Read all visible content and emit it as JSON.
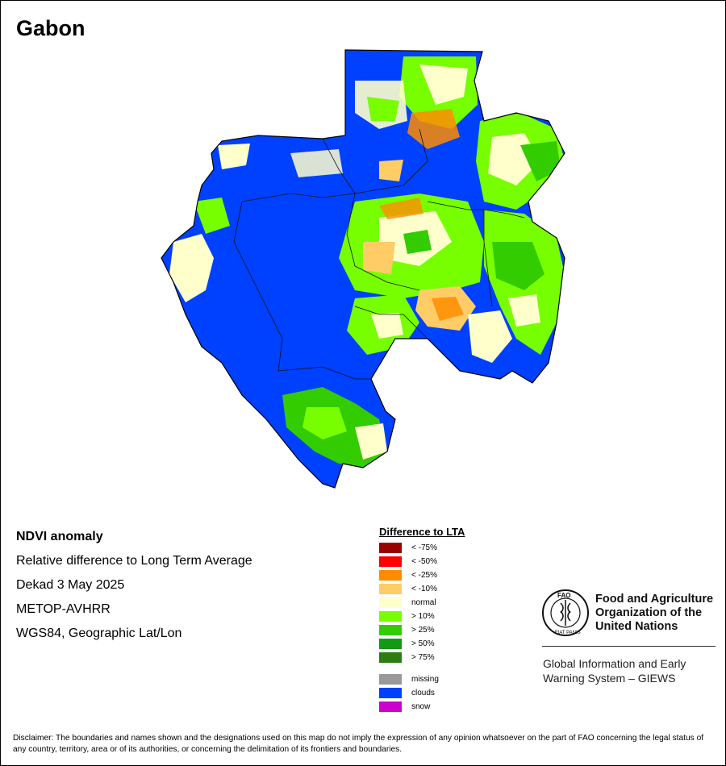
{
  "map": {
    "title": "Gabon"
  },
  "info": {
    "heading": "NDVI anomaly",
    "subtitle": "Relative difference to Long Term Average",
    "period": "Dekad 3 May 2025",
    "sensor": "METOP-AVHRR",
    "projection": "WGS84, Geographic Lat/Lon"
  },
  "legend": {
    "title": "Difference to LTA",
    "items": [
      {
        "label": "< -75%",
        "color": "#990000"
      },
      {
        "label": "< -50%",
        "color": "#ff0000"
      },
      {
        "label": "< -25%",
        "color": "#ff8c00"
      },
      {
        "label": "< -10%",
        "color": "#ffcc66"
      },
      {
        "label": "normal",
        "color": "#ffffcc"
      },
      {
        "label": "> 10%",
        "color": "#77ff00"
      },
      {
        "label": "> 25%",
        "color": "#33cc00"
      },
      {
        "label": "> 50%",
        "color": "#139913"
      },
      {
        "label": "> 75%",
        "color": "#2e7d10"
      }
    ],
    "extra": [
      {
        "label": "missing",
        "color": "#999999"
      },
      {
        "label": "clouds",
        "color": "#0040ff"
      },
      {
        "label": "snow",
        "color": "#cc00cc"
      }
    ]
  },
  "org": {
    "logo_letters": "FAO",
    "logo_ring": "FIAT PANIS",
    "name_line1": "Food and Agriculture",
    "name_line2": "Organization of the",
    "name_line3": "United Nations",
    "giews_line1": "Global Information and Early",
    "giews_line2": "Warning System – GIEWS"
  },
  "disclaimer": "Disclaimer: The boundaries and names shown and the designations used on this map do not imply the expression of any opinion whatsoever on the part of FAO concerning the legal status of any country, territory, area or of its authorities, or concerning the delimitation of its frontiers and boundaries."
}
